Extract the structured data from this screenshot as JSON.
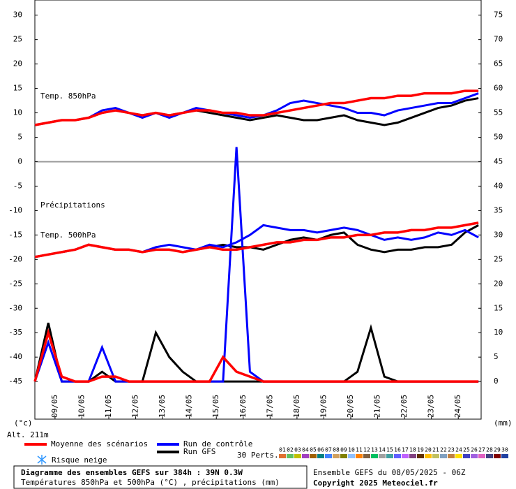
{
  "chart_data": {
    "type": "line",
    "annotations": [
      "Temp. 850hPa",
      "Précipitations",
      "Temp. 500hPa"
    ],
    "ylabel": "(°c)",
    "y2label": "(mm)",
    "altitude": "Alt. 211m",
    "x": [
      0,
      0.5,
      1,
      1.5,
      2,
      2.5,
      3,
      3.5,
      4,
      4.5,
      5,
      5.5,
      6,
      6.5,
      7,
      7.5,
      8,
      8.5,
      9,
      9.5,
      10,
      10.5,
      11,
      11.5,
      12,
      12.5,
      13,
      13.5,
      14,
      14.5,
      15,
      15.5,
      16,
      16.5
    ],
    "xlim": [
      0,
      16.6
    ],
    "xticks": [
      {
        "value": 0.75,
        "label": "09/05"
      },
      {
        "value": 1.75,
        "label": "10/05"
      },
      {
        "value": 2.75,
        "label": "11/05"
      },
      {
        "value": 3.75,
        "label": "12/05"
      },
      {
        "value": 4.75,
        "label": "13/05"
      },
      {
        "value": 5.75,
        "label": "14/05"
      },
      {
        "value": 6.75,
        "label": "15/05"
      },
      {
        "value": 7.75,
        "label": "16/05"
      },
      {
        "value": 8.75,
        "label": "17/05"
      },
      {
        "value": 9.75,
        "label": "18/05"
      },
      {
        "value": 10.75,
        "label": "19/05"
      },
      {
        "value": 11.75,
        "label": "20/05"
      },
      {
        "value": 12.75,
        "label": "21/05"
      },
      {
        "value": 13.75,
        "label": "22/05"
      },
      {
        "value": 14.75,
        "label": "23/05"
      },
      {
        "value": 15.75,
        "label": "24/05"
      }
    ],
    "ylim": [
      -52.7,
      33.1
    ],
    "yticks": [
      30,
      25,
      20,
      15,
      10,
      5,
      0,
      -5,
      -10,
      -15,
      -20,
      -25,
      -30,
      -35,
      -40,
      -45
    ],
    "y2lim": [
      -7.7,
      78.1
    ],
    "y2ticks": [
      75,
      70,
      65,
      60,
      55,
      50,
      45,
      40,
      35,
      30,
      25,
      20,
      15,
      10,
      5,
      0
    ],
    "panel_divider": 0,
    "series": [
      {
        "name": "Moyenne des scénarios",
        "color": "#ff0000",
        "t850": [
          7.5,
          8,
          8.5,
          8.5,
          9,
          10,
          10.5,
          10,
          9.5,
          10,
          9.5,
          10,
          10.5,
          10.5,
          10,
          10,
          9.5,
          9.5,
          10,
          10.5,
          11,
          11.5,
          12,
          12,
          12.5,
          13,
          13,
          13.5,
          13.5,
          14,
          14,
          14,
          14.5,
          14.5
        ],
        "t500": [
          -19.5,
          -19,
          -18.5,
          -18,
          -17,
          -17.5,
          -18,
          -18,
          -18.5,
          -18,
          -18,
          -18.5,
          -18,
          -17.5,
          -18,
          -18,
          -17.5,
          -17,
          -16.5,
          -16.5,
          -16,
          -16,
          -15.5,
          -15.5,
          -15,
          -15,
          -14.5,
          -14.5,
          -14,
          -14,
          -13.5,
          -13.5,
          -13,
          -12.5
        ],
        "precip": [
          0,
          10,
          1,
          0,
          0,
          1,
          1,
          0,
          0,
          0,
          0,
          0,
          0,
          0,
          5,
          2,
          1,
          0,
          0,
          0,
          0,
          0,
          0,
          0,
          0,
          0,
          0,
          0,
          0,
          0,
          0,
          0,
          0,
          0
        ]
      },
      {
        "name": "Run de contrôle",
        "color": "#0000ff",
        "t850": [
          7.5,
          8,
          8.5,
          8.5,
          9,
          10.5,
          11,
          10,
          9,
          10,
          9,
          10,
          11,
          10.5,
          10,
          9.5,
          9,
          9.5,
          10.5,
          12,
          12.5,
          12,
          11.5,
          11,
          10,
          10,
          9.5,
          10.5,
          11,
          11.5,
          12,
          12,
          13,
          14
        ],
        "t500": [
          -19.5,
          -19,
          -18.5,
          -18,
          -17,
          -17.5,
          -18,
          -18,
          -18.5,
          -17.5,
          -17,
          -17.5,
          -18,
          -17,
          -17.5,
          -16.5,
          -15,
          -13,
          -13.5,
          -14,
          -14,
          -14.5,
          -14,
          -13.5,
          -14,
          -15,
          -16,
          -15.5,
          -16,
          -15.5,
          -14.5,
          -15,
          -14,
          -15.5
        ],
        "precip": [
          0,
          8,
          0,
          0,
          0,
          7,
          0,
          0,
          0,
          0,
          0,
          0,
          0,
          0,
          0,
          48,
          2,
          0,
          0,
          0,
          0,
          0,
          0,
          0,
          0,
          0,
          0,
          0,
          0,
          0,
          0,
          0,
          0,
          0
        ]
      },
      {
        "name": "Run GFS",
        "color": "#000000",
        "t850": [
          7.5,
          8,
          8.5,
          8.5,
          9,
          10,
          10.5,
          10,
          9.5,
          10,
          9.5,
          10,
          10.5,
          10,
          9.5,
          9,
          8.5,
          9,
          9.5,
          9,
          8.5,
          8.5,
          9,
          9.5,
          8.5,
          8,
          7.5,
          8,
          9,
          10,
          11,
          11.5,
          12.5,
          13
        ],
        "t500": [
          -19.5,
          -19,
          -18.5,
          -18,
          -17,
          -17.5,
          -18,
          -18,
          -18.5,
          -18,
          -18,
          -18.5,
          -18,
          -17.5,
          -17,
          -17.5,
          -17.5,
          -18,
          -17,
          -16,
          -15.5,
          -16,
          -15,
          -14.5,
          -17,
          -18,
          -18.5,
          -18,
          -18,
          -17.5,
          -17.5,
          -17,
          -14.5,
          -13
        ],
        "precip": [
          0,
          12,
          0,
          0,
          0,
          2,
          0,
          0,
          0,
          10,
          5,
          2,
          0,
          0,
          0,
          0,
          0,
          0,
          0,
          0,
          0,
          0,
          0,
          0,
          2,
          11,
          1,
          0,
          0,
          0,
          0,
          0,
          0,
          0
        ]
      }
    ],
    "snow_label": "Risque neige",
    "perts_label": "30 Perts.",
    "perts": [
      "01",
      "02",
      "03",
      "04",
      "05",
      "06",
      "07",
      "08",
      "09",
      "10",
      "11",
      "12",
      "13",
      "14",
      "15",
      "16",
      "17",
      "18",
      "19",
      "20",
      "21",
      "22",
      "23",
      "24",
      "25",
      "26",
      "27",
      "28",
      "29",
      "30"
    ],
    "pert_colors": [
      "#e07030",
      "#60c060",
      "#c0c000",
      "#a040c0",
      "#a06000",
      "#008080",
      "#4080ff",
      "#d0a060",
      "#808000",
      "#90c0ff",
      "#ff8000",
      "#806040",
      "#00c060",
      "#a0a0a0",
      "#40a0a0",
      "#6060ff",
      "#c060ff",
      "#804080",
      "#603000",
      "#ffc000",
      "#c0c060",
      "#80a0c0",
      "#c08040",
      "#ffe000",
      "#4040c0",
      "#a060e0",
      "#e060c0",
      "#404080",
      "#800000",
      "#2040a0"
    ],
    "footer": {
      "title": "Diagramme des ensembles GEFS sur 384h : 39N 0.3W",
      "subtitle": "Températures 850hPa et 500hPa (°C) , précipitations (mm)",
      "run": "Ensemble GEFS du 08/05/2025 - 06Z",
      "copyright": "Copyright 2025 Meteociel.fr"
    }
  }
}
